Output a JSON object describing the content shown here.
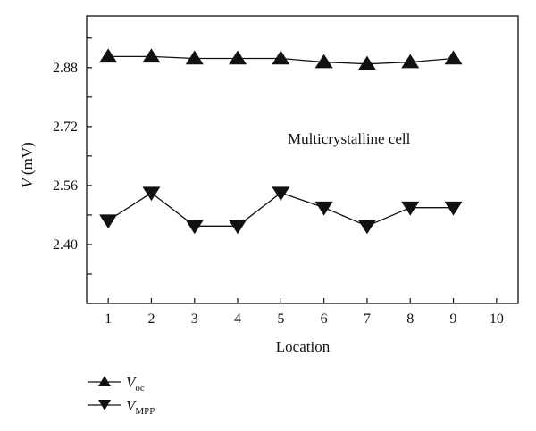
{
  "chart_data": {
    "type": "line",
    "title": "",
    "annotation": "Multicrystalline cell",
    "xlabel": "Location",
    "ylabel_var": "V",
    "ylabel_unit": " (mV)",
    "xlim": [
      0.5,
      10.5
    ],
    "ylim": [
      2.24,
      3.02
    ],
    "x_ticks": [
      1,
      2,
      3,
      4,
      5,
      6,
      7,
      8,
      9,
      10
    ],
    "y_ticks": [
      2.4,
      2.56,
      2.72,
      2.88
    ],
    "y_tick_labels": [
      "2.40",
      "2.56",
      "2.72",
      "2.88"
    ],
    "grid": false,
    "legend_placement": "bottom-left",
    "series": [
      {
        "name": "V",
        "name_sub": "oc",
        "marker": "triangle-up",
        "color": "#111111",
        "x": [
          1,
          2,
          3,
          4,
          5,
          6,
          7,
          8,
          9
        ],
        "values": [
          2.91,
          2.91,
          2.905,
          2.905,
          2.905,
          2.895,
          2.89,
          2.895,
          2.905
        ]
      },
      {
        "name": "V",
        "name_sub": "MPP",
        "marker": "triangle-down",
        "color": "#111111",
        "x": [
          1,
          2,
          3,
          4,
          5,
          6,
          7,
          8,
          9
        ],
        "values": [
          2.465,
          2.54,
          2.45,
          2.45,
          2.54,
          2.5,
          2.45,
          2.5,
          2.5
        ]
      }
    ]
  }
}
